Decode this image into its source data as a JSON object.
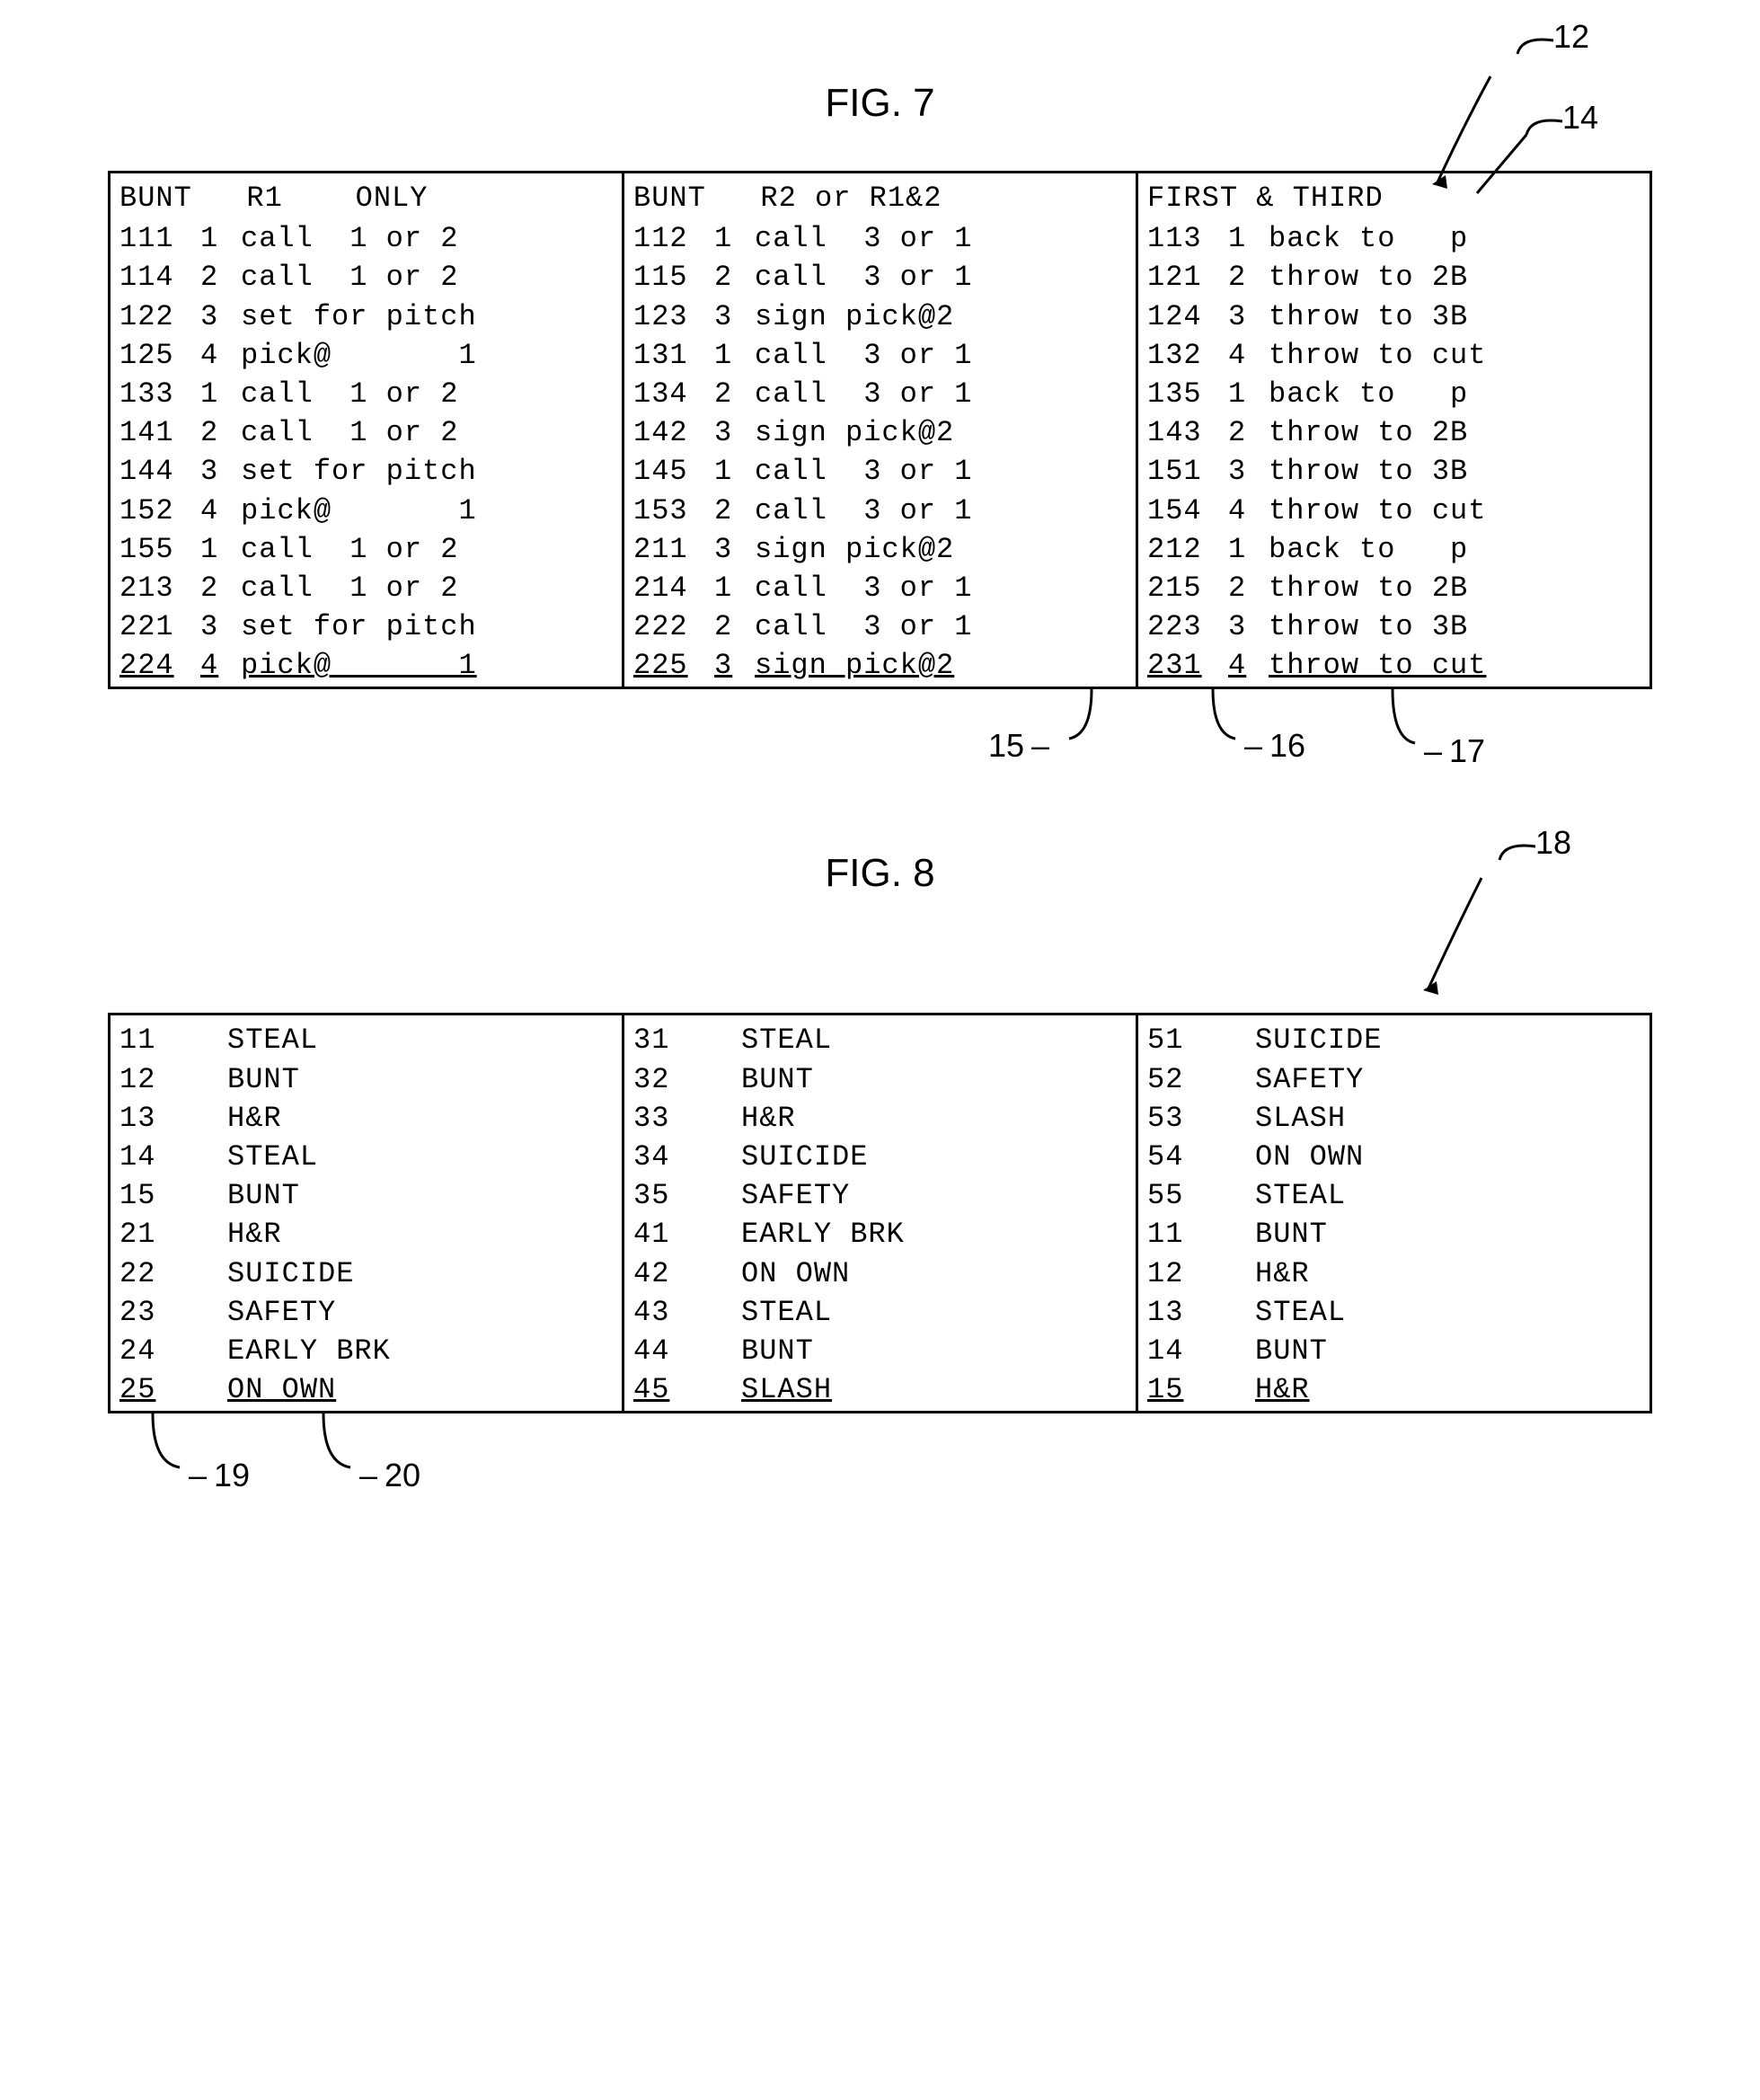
{
  "fig7": {
    "title": "FIG. 7",
    "callout_12": "12",
    "callout_14": "14",
    "callout_15": "15",
    "callout_16": "16",
    "callout_17": "17",
    "columns": [
      {
        "header": "BUNT   R1    ONLY",
        "rows": [
          {
            "a": "111",
            "b": "1",
            "c": "call  1 or 2"
          },
          {
            "a": "114",
            "b": "2",
            "c": "call  1 or 2"
          },
          {
            "a": "122",
            "b": "3",
            "c": "set for pitch"
          },
          {
            "a": "125",
            "b": "4",
            "c": "pick@       1"
          },
          {
            "a": "133",
            "b": "1",
            "c": "call  1 or 2"
          },
          {
            "a": "141",
            "b": "2",
            "c": "call  1 or 2"
          },
          {
            "a": "144",
            "b": "3",
            "c": "set for pitch"
          },
          {
            "a": "152",
            "b": "4",
            "c": "pick@       1"
          },
          {
            "a": "155",
            "b": "1",
            "c": "call  1 or 2"
          },
          {
            "a": "213",
            "b": "2",
            "c": "call  1 or 2"
          },
          {
            "a": "221",
            "b": "3",
            "c": "set for pitch"
          },
          {
            "a": "224",
            "b": "4",
            "c": "pick@       1"
          }
        ]
      },
      {
        "header": "BUNT   R2 or R1&2",
        "rows": [
          {
            "a": "112",
            "b": "1",
            "c": "call  3 or 1"
          },
          {
            "a": "115",
            "b": "2",
            "c": "call  3 or 1"
          },
          {
            "a": "123",
            "b": "3",
            "c": "sign pick@2"
          },
          {
            "a": "131",
            "b": "1",
            "c": "call  3 or 1"
          },
          {
            "a": "134",
            "b": "2",
            "c": "call  3 or 1"
          },
          {
            "a": "142",
            "b": "3",
            "c": "sign pick@2"
          },
          {
            "a": "145",
            "b": "1",
            "c": "call  3 or 1"
          },
          {
            "a": "153",
            "b": "2",
            "c": "call  3 or 1"
          },
          {
            "a": "211",
            "b": "3",
            "c": "sign pick@2"
          },
          {
            "a": "214",
            "b": "1",
            "c": "call  3 or 1"
          },
          {
            "a": "222",
            "b": "2",
            "c": "call  3 or 1"
          },
          {
            "a": "225",
            "b": "3",
            "c": "sign pick@2"
          }
        ]
      },
      {
        "header": "FIRST & THIRD",
        "rows": [
          {
            "a": "113",
            "b": "1",
            "c": "back to   p"
          },
          {
            "a": "121",
            "b": "2",
            "c": "throw to 2B"
          },
          {
            "a": "124",
            "b": "3",
            "c": "throw to 3B"
          },
          {
            "a": "132",
            "b": "4",
            "c": "throw to cut"
          },
          {
            "a": "135",
            "b": "1",
            "c": "back to   p"
          },
          {
            "a": "143",
            "b": "2",
            "c": "throw to 2B"
          },
          {
            "a": "151",
            "b": "3",
            "c": "throw to 3B"
          },
          {
            "a": "154",
            "b": "4",
            "c": "throw to cut"
          },
          {
            "a": "212",
            "b": "1",
            "c": "back to   p"
          },
          {
            "a": "215",
            "b": "2",
            "c": "throw to 2B"
          },
          {
            "a": "223",
            "b": "3",
            "c": "throw to 3B"
          },
          {
            "a": "231",
            "b": "4",
            "c": "throw to cut"
          }
        ]
      }
    ]
  },
  "fig8": {
    "title": "FIG. 8",
    "callout_18": "18",
    "callout_19": "19",
    "callout_20": "20",
    "columns": [
      {
        "rows": [
          {
            "a": "11",
            "c": "STEAL"
          },
          {
            "a": "12",
            "c": "BUNT"
          },
          {
            "a": "13",
            "c": "H&R"
          },
          {
            "a": "14",
            "c": "STEAL"
          },
          {
            "a": "15",
            "c": "BUNT"
          },
          {
            "a": "21",
            "c": "H&R"
          },
          {
            "a": "22",
            "c": "SUICIDE"
          },
          {
            "a": "23",
            "c": "SAFETY"
          },
          {
            "a": "24",
            "c": "EARLY BRK"
          },
          {
            "a": "25",
            "c": "ON OWN"
          }
        ]
      },
      {
        "rows": [
          {
            "a": "31",
            "c": "STEAL"
          },
          {
            "a": "32",
            "c": "BUNT"
          },
          {
            "a": "33",
            "c": "H&R"
          },
          {
            "a": "34",
            "c": "SUICIDE"
          },
          {
            "a": "35",
            "c": "SAFETY"
          },
          {
            "a": "41",
            "c": "EARLY BRK"
          },
          {
            "a": "42",
            "c": "ON OWN"
          },
          {
            "a": "43",
            "c": "STEAL"
          },
          {
            "a": "44",
            "c": "BUNT"
          },
          {
            "a": "45",
            "c": "SLASH"
          }
        ]
      },
      {
        "rows": [
          {
            "a": "51",
            "c": "SUICIDE"
          },
          {
            "a": "52",
            "c": "SAFETY"
          },
          {
            "a": "53",
            "c": "SLASH"
          },
          {
            "a": "54",
            "c": "ON OWN"
          },
          {
            "a": "55",
            "c": "STEAL"
          },
          {
            "a": "11",
            "c": "BUNT"
          },
          {
            "a": "12",
            "c": "H&R"
          },
          {
            "a": "13",
            "c": "STEAL"
          },
          {
            "a": "14",
            "c": "BUNT"
          },
          {
            "a": "15",
            "c": "H&R"
          }
        ]
      }
    ]
  },
  "style": {
    "border_color": "#000000",
    "bg": "#ffffff",
    "font_mono": "Courier New",
    "font_sans": "Arial",
    "cell_fontsize": 32,
    "title_fontsize": 44,
    "callout_fontsize": 36
  }
}
